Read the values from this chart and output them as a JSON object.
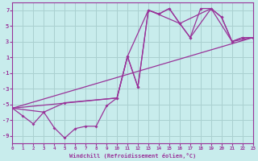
{
  "xlabel": "Windchill (Refroidissement éolien,°C)",
  "bg_color": "#c8ecec",
  "grid_color": "#aad0d0",
  "line_color": "#993399",
  "xlim": [
    0,
    23
  ],
  "ylim": [
    -10,
    8
  ],
  "yticks": [
    -9,
    -7,
    -5,
    -3,
    -1,
    1,
    3,
    5,
    7
  ],
  "xticks": [
    0,
    1,
    2,
    3,
    4,
    5,
    6,
    7,
    8,
    9,
    10,
    11,
    12,
    13,
    14,
    15,
    16,
    17,
    18,
    19,
    20,
    21,
    22,
    23
  ],
  "line1_x": [
    0,
    1,
    2,
    3,
    4,
    5,
    6,
    7,
    8,
    9,
    10,
    11,
    12,
    13,
    14,
    15,
    16,
    17,
    18,
    19,
    20,
    21,
    22,
    23
  ],
  "line1_y": [
    -5.5,
    -6.5,
    -7.5,
    -6.0,
    -8.0,
    -9.3,
    -8.1,
    -7.8,
    -7.8,
    -5.2,
    -4.2,
    1.1,
    -2.8,
    7.0,
    6.5,
    7.2,
    5.3,
    3.5,
    7.2,
    7.2,
    6.1,
    3.0,
    3.5,
    3.5
  ],
  "line2_x": [
    0,
    3,
    5,
    10,
    11,
    12,
    13,
    14,
    15,
    16,
    17,
    19,
    20,
    21,
    22,
    23
  ],
  "line2_y": [
    -5.5,
    -6.0,
    -4.8,
    -4.2,
    1.1,
    -2.8,
    7.0,
    6.5,
    7.2,
    5.3,
    3.5,
    7.2,
    6.1,
    3.0,
    3.5,
    3.5
  ],
  "line3_x": [
    0,
    10,
    11,
    13,
    16,
    19,
    21,
    23
  ],
  "line3_y": [
    -5.5,
    -4.2,
    1.1,
    7.0,
    5.3,
    7.2,
    3.0,
    3.5
  ],
  "line4_x": [
    0,
    23
  ],
  "line4_y": [
    -5.5,
    3.5
  ]
}
